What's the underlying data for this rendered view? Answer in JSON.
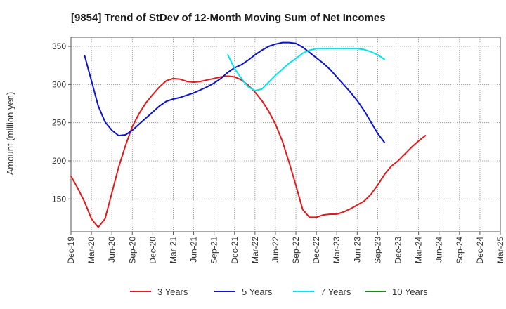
{
  "chart_data": {
    "type": "line",
    "title": "[9854]  Trend of StDev of 12-Month Moving Sum of Net Incomes",
    "xlabel": "",
    "ylabel": "Amount (million yen)",
    "x_ticks": [
      "Dec-19",
      "Mar-20",
      "Jun-20",
      "Sep-20",
      "Dec-20",
      "Mar-21",
      "Jun-21",
      "Sep-21",
      "Dec-21",
      "Mar-22",
      "Jun-22",
      "Sep-22",
      "Dec-22",
      "Mar-23",
      "Jun-23",
      "Sep-23",
      "Dec-23",
      "Mar-24",
      "Jun-24",
      "Sep-24",
      "Dec-24",
      "Mar-25"
    ],
    "y_ticks": [
      150,
      200,
      250,
      300,
      350
    ],
    "ylim": [
      107,
      362
    ],
    "grid": true,
    "legend_position": "bottom",
    "series": [
      {
        "name": "3 Years",
        "color": "#e31a1c",
        "start_index": 0,
        "values": [
          180,
          164,
          146,
          124,
          113,
          124,
          158,
          192,
          220,
          245,
          262,
          276,
          287,
          297,
          305,
          308,
          307,
          304,
          303,
          304,
          306,
          308,
          310,
          311,
          310,
          306,
          299,
          290,
          279,
          265,
          248,
          226,
          198,
          168,
          136,
          126,
          126,
          129,
          130,
          130,
          133,
          137,
          142,
          147,
          156,
          168,
          182,
          193,
          200,
          209,
          218,
          226,
          233
        ]
      },
      {
        "name": "5 Years",
        "color": "#0a14cc",
        "start_index": 2,
        "values": [
          338,
          305,
          272,
          251,
          240,
          233,
          234,
          240,
          248,
          256,
          264,
          272,
          278,
          281,
          283,
          286,
          289,
          293,
          297,
          302,
          308,
          316,
          322,
          326,
          332,
          339,
          345,
          350,
          353,
          355,
          355,
          354,
          349,
          342,
          335,
          328,
          320,
          310,
          300,
          290,
          279,
          266,
          251,
          236,
          224
        ]
      },
      {
        "name": "7 Years",
        "color": "#00e5ef",
        "start_index": 23,
        "values": [
          339,
          321,
          308,
          297,
          292,
          294,
          303,
          312,
          320,
          328,
          334,
          341,
          345,
          347,
          347,
          347,
          347,
          347,
          347,
          347,
          346,
          343,
          339,
          333
        ]
      },
      {
        "name": "10 Years",
        "color": "#1a8c1a",
        "start_index": 0,
        "values": []
      }
    ]
  }
}
